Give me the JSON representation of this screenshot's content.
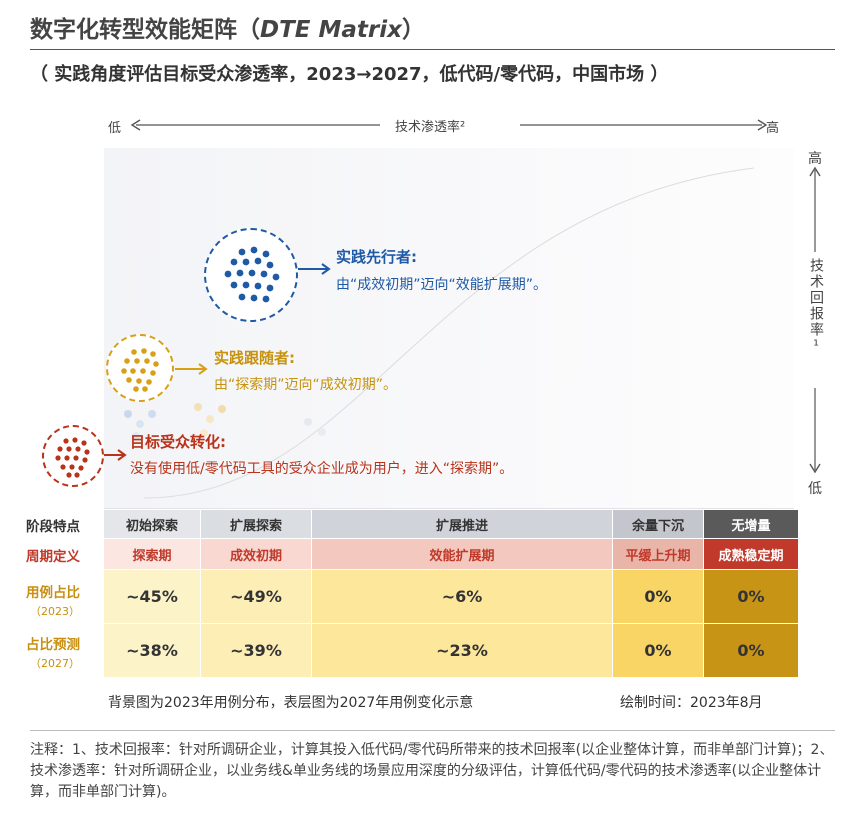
{
  "header": {
    "title_cn": "数字化转型效能矩阵（",
    "title_en": "DTE Matrix",
    "title_close": "）",
    "subtitle": "（ 实践角度评估目标受众渗透率，2023→2027，低代码/零代码，中国市场 ）"
  },
  "axes": {
    "x_low": "低",
    "x_label": "技术渗透率²",
    "x_high": "高",
    "y_high": "高",
    "y_label": "技术回报率¹",
    "y_low": "低"
  },
  "groups": [
    {
      "title": "实践先行者:",
      "desc": "由“成效初期”迈向“效能扩展期”。",
      "color": "#1f5aa6"
    },
    {
      "title": "实践跟随者:",
      "desc": "由“探索期”迈向“成效初期”。",
      "color": "#d8a017"
    },
    {
      "title": "目标受众转化:",
      "desc": "没有使用低/零代码工具的受众企业成为用户，进入“探索期”。",
      "color": "#b8331a"
    }
  ],
  "table": {
    "row_labels": {
      "stage": "阶段特点",
      "period": "周期定义",
      "share2023": "用例占比",
      "share2023_year": "（2023）",
      "share2027": "占比预测",
      "share2027_year": "（2027）"
    },
    "columns": [
      {
        "stage": "初始探索",
        "period": "探索期"
      },
      {
        "stage": "扩展探索",
        "period": "成效初期"
      },
      {
        "stage": "扩展推进",
        "period": "效能扩展期"
      },
      {
        "stage": "余量下沉",
        "period": "平缓上升期"
      },
      {
        "stage": "无增量",
        "period": "成熟稳定期"
      }
    ]
  },
  "footer": {
    "caption": "背景图为2023年用例分布，表层图为2027年用例变化示意",
    "drawn": "绘制时间：2023年8月",
    "note": "注释：1、技术回报率：针对所调研企业，计算其投入低代码/零代码所带来的技术回报率(以企业整体计算，而非单部门计算)；2、技术渗透率：针对所调研企业，以业务线&单业务线的场景应用深度的分级评估，计算低代码/零代码的技术渗透率(以企业整体计算，而非单部门计算)。"
  },
  "chart_data": {
    "type": "table",
    "title": "数字化转型效能矩阵（DTE Matrix）",
    "categories": [
      "探索期",
      "成效初期",
      "效能扩展期",
      "平缓上升期",
      "成熟稳定期"
    ],
    "series": [
      {
        "name": "用例占比（2023）",
        "values": [
          "~45%",
          "~49%",
          "~6%",
          "0%",
          "0%"
        ]
      },
      {
        "name": "占比预测（2027）",
        "values": [
          "~38%",
          "~39%",
          "~23%",
          "0%",
          "0%"
        ]
      }
    ],
    "xlabel": "技术渗透率²",
    "ylabel": "技术回报率¹"
  }
}
